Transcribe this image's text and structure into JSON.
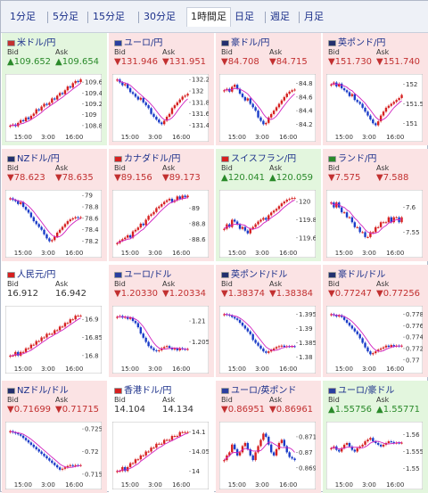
{
  "tabs": [
    {
      "label": "1分足"
    },
    {
      "label": "5分足"
    },
    {
      "label": "15分足"
    },
    {
      "label": "30分足"
    },
    {
      "label": "1時間足"
    },
    {
      "label": "日足"
    },
    {
      "label": "週足"
    },
    {
      "label": "月足"
    }
  ],
  "active_tab": "1時間足",
  "colors": {
    "up_bg": "#e3f6de",
    "down_bg": "#fbe3e4",
    "up_text": "#2a8a2a",
    "down_text": "#c23030",
    "bull": "#d62020",
    "bear": "#1a3cc8",
    "ma": "#d020c0"
  },
  "pairs": [
    {
      "name": "米ドル/円",
      "trend": "up",
      "bid_label": "Bid",
      "ask_label": "Ask",
      "bid": "▲109.652",
      "ask": "▲109.654",
      "flag": "us-flag-icon",
      "x_ticks": [
        "15:00",
        "3:00",
        "16:00"
      ],
      "y_ticks": [
        "109.6",
        "109.4",
        "109.2",
        "109",
        "108.8"
      ],
      "ylim": [
        108.7,
        109.7
      ],
      "close": [
        108.8,
        108.82,
        108.79,
        108.85,
        108.9,
        108.88,
        108.95,
        108.92,
        108.98,
        109.02,
        109.1,
        109.08,
        109.15,
        109.2,
        109.18,
        109.22,
        109.3,
        109.28,
        109.35,
        109.4,
        109.38,
        109.45,
        109.52,
        109.5,
        109.58,
        109.62,
        109.6,
        109.65
      ]
    },
    {
      "name": "ユーロ/円",
      "trend": "down",
      "bid_label": "Bid",
      "ask_label": "Ask",
      "bid": "▼131.946",
      "ask": "▼131.951",
      "flag": "eu-flag-icon",
      "x_ticks": [
        "15:00",
        "3:00",
        "16:00"
      ],
      "y_ticks": [
        "132.2",
        "132",
        "131.8",
        "131.6",
        "131.4"
      ],
      "ylim": [
        131.3,
        132.25
      ],
      "close": [
        132.2,
        132.15,
        132.1,
        132.12,
        132.05,
        131.98,
        131.95,
        131.9,
        131.85,
        131.88,
        131.8,
        131.75,
        131.7,
        131.6,
        131.55,
        131.5,
        131.45,
        131.42,
        131.48,
        131.55,
        131.6,
        131.7,
        131.75,
        131.8,
        131.85,
        131.9,
        131.92,
        131.95
      ]
    },
    {
      "name": "豪ドル/円",
      "trend": "down",
      "bid_label": "Bid",
      "ask_label": "Ask",
      "bid": "▼84.708",
      "ask": "▼84.715",
      "flag": "au-flag-icon",
      "x_ticks": [
        "15:00",
        "3:00",
        "16:00"
      ],
      "y_ticks": [
        "84.8",
        "84.6",
        "84.4",
        "84.2"
      ],
      "ylim": [
        84.1,
        84.9
      ],
      "close": [
        84.7,
        84.72,
        84.68,
        84.75,
        84.78,
        84.72,
        84.65,
        84.6,
        84.55,
        84.58,
        84.5,
        84.45,
        84.4,
        84.3,
        84.25,
        84.2,
        84.22,
        84.3,
        84.35,
        84.4,
        84.45,
        84.5,
        84.55,
        84.6,
        84.65,
        84.68,
        84.7,
        84.71
      ]
    },
    {
      "name": "英ポンド/円",
      "trend": "down",
      "bid_label": "Bid",
      "ask_label": "Ask",
      "bid": "▼151.730",
      "ask": "▼151.740",
      "flag": "uk-flag-icon",
      "x_ticks": [
        "15:00",
        "3:00",
        "16:00"
      ],
      "y_ticks": [
        "152",
        "151.5",
        "151"
      ],
      "ylim": [
        150.8,
        152.2
      ],
      "close": [
        152.0,
        152.05,
        151.95,
        152.02,
        151.9,
        151.85,
        151.8,
        151.7,
        151.75,
        151.6,
        151.55,
        151.5,
        151.4,
        151.3,
        151.2,
        151.1,
        151.0,
        150.95,
        151.05,
        151.2,
        151.3,
        151.4,
        151.45,
        151.5,
        151.55,
        151.6,
        151.65,
        151.73
      ]
    },
    {
      "name": "NZドル/円",
      "trend": "down",
      "bid_label": "Bid",
      "ask_label": "Ask",
      "bid": "▼78.623",
      "ask": "▼78.635",
      "flag": "nz-flag-icon",
      "x_ticks": [
        "15:00",
        "3:00",
        "16:00"
      ],
      "y_ticks": [
        "79",
        "78.8",
        "78.6",
        "78.4",
        "78.2"
      ],
      "ylim": [
        78.1,
        79.05
      ],
      "close": [
        78.95,
        78.92,
        78.9,
        78.85,
        78.88,
        78.8,
        78.75,
        78.7,
        78.62,
        78.55,
        78.5,
        78.45,
        78.4,
        78.32,
        78.25,
        78.2,
        78.22,
        78.28,
        78.35,
        78.4,
        78.45,
        78.5,
        78.55,
        78.58,
        78.6,
        78.62,
        78.61,
        78.62
      ]
    },
    {
      "name": "カナダドル/円",
      "trend": "down",
      "bid_label": "Bid",
      "ask_label": "Ask",
      "bid": "▼89.156",
      "ask": "▼89.173",
      "flag": "ca-flag-icon",
      "x_ticks": [
        "15:00",
        "3:00",
        "16:00"
      ],
      "y_ticks": [
        "89",
        "88.8",
        "88.6"
      ],
      "ylim": [
        88.5,
        89.2
      ],
      "close": [
        88.55,
        88.58,
        88.6,
        88.62,
        88.65,
        88.62,
        88.7,
        88.72,
        88.75,
        88.8,
        88.78,
        88.85,
        88.9,
        88.92,
        88.95,
        89.0,
        89.02,
        89.05,
        89.08,
        89.1,
        89.12,
        89.08,
        89.1,
        89.15,
        89.12,
        89.16,
        89.14,
        89.16
      ]
    },
    {
      "name": "スイスフラン/円",
      "trend": "up",
      "bid_label": "Bid",
      "ask_label": "Ask",
      "bid": "▲120.041",
      "ask": "▲120.059",
      "flag": "ch-flag-icon",
      "x_ticks": [
        "15:00",
        "3:00",
        "16:00"
      ],
      "y_ticks": [
        "120",
        "119.8",
        "119.6"
      ],
      "ylim": [
        119.5,
        120.1
      ],
      "close": [
        119.7,
        119.75,
        119.72,
        119.8,
        119.78,
        119.75,
        119.7,
        119.72,
        119.68,
        119.65,
        119.7,
        119.72,
        119.75,
        119.78,
        119.8,
        119.82,
        119.8,
        119.85,
        119.88,
        119.9,
        119.92,
        119.95,
        119.98,
        120.0,
        120.02,
        120.03,
        120.04,
        120.04
      ]
    },
    {
      "name": "ランド/円",
      "trend": "down",
      "bid_label": "Bid",
      "ask_label": "Ask",
      "bid": "▼7.575",
      "ask": "▼7.588",
      "flag": "za-flag-icon",
      "x_ticks": [
        "15:00",
        "3:00",
        "16:00"
      ],
      "y_ticks": [
        "7.6",
        "7.55"
      ],
      "ylim": [
        7.52,
        7.63
      ],
      "close": [
        7.61,
        7.6,
        7.61,
        7.6,
        7.59,
        7.59,
        7.58,
        7.58,
        7.57,
        7.56,
        7.56,
        7.55,
        7.55,
        7.54,
        7.54,
        7.55,
        7.55,
        7.56,
        7.56,
        7.57,
        7.57,
        7.57,
        7.58,
        7.57,
        7.58,
        7.58,
        7.57,
        7.58
      ]
    },
    {
      "name": "人民元/円",
      "trend": "flat",
      "bid_label": "Bid",
      "ask_label": "Ask",
      "bid": "16.912",
      "ask": "16.942",
      "flag": "cn-flag-icon",
      "x_ticks": [
        "15:00",
        "3:00",
        "16:00"
      ],
      "y_ticks": [
        "16.9",
        "16.85",
        "16.8"
      ],
      "ylim": [
        16.78,
        16.93
      ],
      "close": [
        16.8,
        16.8,
        16.81,
        16.8,
        16.81,
        16.81,
        16.82,
        16.82,
        16.83,
        16.83,
        16.84,
        16.84,
        16.85,
        16.85,
        16.86,
        16.86,
        16.86,
        16.87,
        16.87,
        16.88,
        16.88,
        16.89,
        16.89,
        16.9,
        16.9,
        16.91,
        16.91,
        16.91
      ]
    },
    {
      "name": "ユーロ/ドル",
      "trend": "down",
      "bid_label": "Bid",
      "ask_label": "Ask",
      "bid": "▼1.20330",
      "ask": "▼1.20334",
      "flag": "eu-flag-icon",
      "x_ticks": [
        "15:00",
        "3:00",
        "16:00"
      ],
      "y_ticks": [
        "1.21",
        "1.205"
      ],
      "ylim": [
        1.2,
        1.213
      ],
      "close": [
        1.211,
        1.2112,
        1.2108,
        1.211,
        1.2105,
        1.2108,
        1.21,
        1.2095,
        1.2085,
        1.207,
        1.206,
        1.205,
        1.204,
        1.2035,
        1.203,
        1.2028,
        1.203,
        1.2035,
        1.2038,
        1.204,
        1.2036,
        1.2032,
        1.2034,
        1.203,
        1.2035,
        1.2033,
        1.2032,
        1.2033
      ]
    },
    {
      "name": "英ポンド/ドル",
      "trend": "down",
      "bid_label": "Bid",
      "ask_label": "Ask",
      "bid": "▼1.38374",
      "ask": "▼1.38384",
      "flag": "uk-flag-icon",
      "x_ticks": [
        "15:00",
        "3:00",
        "16:00"
      ],
      "y_ticks": [
        "1.395",
        "1.39",
        "1.385",
        "1.38"
      ],
      "ylim": [
        1.378,
        1.397
      ],
      "close": [
        1.395,
        1.3948,
        1.3945,
        1.394,
        1.3935,
        1.393,
        1.392,
        1.391,
        1.39,
        1.389,
        1.388,
        1.386,
        1.385,
        1.384,
        1.383,
        1.382,
        1.3815,
        1.382,
        1.3825,
        1.383,
        1.3835,
        1.3838,
        1.384,
        1.3836,
        1.3838,
        1.3837,
        1.3838,
        1.3837
      ]
    },
    {
      "name": "豪ドル/ドル",
      "trend": "down",
      "bid_label": "Bid",
      "ask_label": "Ask",
      "bid": "▼0.77247",
      "ask": "▼0.77256",
      "flag": "au-flag-icon",
      "x_ticks": [
        "15:00",
        "3:00",
        "16:00"
      ],
      "y_ticks": [
        "0.778",
        "0.776",
        "0.774",
        "0.772",
        "0.77"
      ],
      "ylim": [
        0.7695,
        0.779
      ],
      "close": [
        0.778,
        0.7778,
        0.7776,
        0.7778,
        0.7775,
        0.777,
        0.7765,
        0.776,
        0.7755,
        0.775,
        0.7745,
        0.7738,
        0.773,
        0.7722,
        0.7715,
        0.771,
        0.7712,
        0.7715,
        0.7718,
        0.772,
        0.7722,
        0.7725,
        0.7723,
        0.7726,
        0.7724,
        0.7725,
        0.7724,
        0.7725
      ]
    },
    {
      "name": "NZドル/ドル",
      "trend": "down",
      "bid_label": "Bid",
      "ask_label": "Ask",
      "bid": "▼0.71699",
      "ask": "▼0.71715",
      "flag": "nz-flag-icon",
      "x_ticks": [
        "15:00",
        "3:00",
        "16:00"
      ],
      "y_ticks": [
        "0.725",
        "0.72",
        "0.715"
      ],
      "ylim": [
        0.714,
        0.726
      ],
      "close": [
        0.7245,
        0.7242,
        0.724,
        0.7238,
        0.7235,
        0.723,
        0.7225,
        0.722,
        0.7215,
        0.721,
        0.7205,
        0.72,
        0.7195,
        0.719,
        0.7185,
        0.718,
        0.7175,
        0.717,
        0.7165,
        0.716,
        0.7162,
        0.7165,
        0.7168,
        0.717,
        0.7168,
        0.717,
        0.7169,
        0.717
      ]
    },
    {
      "name": "香港ドル/円",
      "trend": "flat",
      "bid_label": "Bid",
      "ask_label": "Ask",
      "bid": "14.104",
      "ask": "14.134",
      "flag": "hk-flag-icon",
      "x_ticks": [
        "15:00",
        "3:00",
        "16:00"
      ],
      "y_ticks": [
        "14.1",
        "14.05",
        "14"
      ],
      "ylim": [
        13.98,
        14.12
      ],
      "close": [
        14.0,
        14.0,
        14.01,
        14.0,
        14.01,
        14.02,
        14.02,
        14.03,
        14.03,
        14.04,
        14.04,
        14.05,
        14.05,
        14.06,
        14.06,
        14.07,
        14.07,
        14.07,
        14.08,
        14.08,
        14.08,
        14.09,
        14.09,
        14.09,
        14.1,
        14.1,
        14.1,
        14.1
      ]
    },
    {
      "name": "ユーロ/英ポンド",
      "trend": "down",
      "bid_label": "Bid",
      "ask_label": "Ask",
      "bid": "▼0.86951",
      "ask": "▼0.86961",
      "flag": "eu-flag-icon",
      "x_ticks": [
        "15:00",
        "3:00",
        "16:00"
      ],
      "y_ticks": [
        "0.871",
        "0.87",
        "0.869"
      ],
      "ylim": [
        0.8683,
        0.8718
      ],
      "close": [
        0.8695,
        0.8698,
        0.87,
        0.8705,
        0.8702,
        0.8698,
        0.87,
        0.8704,
        0.8706,
        0.8702,
        0.8698,
        0.8695,
        0.87,
        0.8704,
        0.8708,
        0.8712,
        0.871,
        0.8705,
        0.87,
        0.8698,
        0.8702,
        0.8706,
        0.8708,
        0.8704,
        0.87,
        0.8697,
        0.8696,
        0.8695
      ]
    },
    {
      "name": "ユーロ/豪ドル",
      "trend": "up",
      "bid_label": "Bid",
      "ask_label": "Ask",
      "bid": "▲1.55756",
      "ask": "▲1.55771",
      "flag": "eu-flag-icon",
      "x_ticks": [
        "15:00",
        "3:00",
        "16:00"
      ],
      "y_ticks": [
        "1.56",
        "1.555",
        "1.55"
      ],
      "ylim": [
        1.547,
        1.563
      ],
      "close": [
        1.556,
        1.5565,
        1.5555,
        1.555,
        1.556,
        1.557,
        1.5575,
        1.5565,
        1.5555,
        1.555,
        1.556,
        1.5565,
        1.557,
        1.558,
        1.5585,
        1.559,
        1.558,
        1.5575,
        1.557,
        1.5565,
        1.557,
        1.5575,
        1.558,
        1.5578,
        1.5575,
        1.5576,
        1.5575,
        1.5576
      ]
    }
  ]
}
